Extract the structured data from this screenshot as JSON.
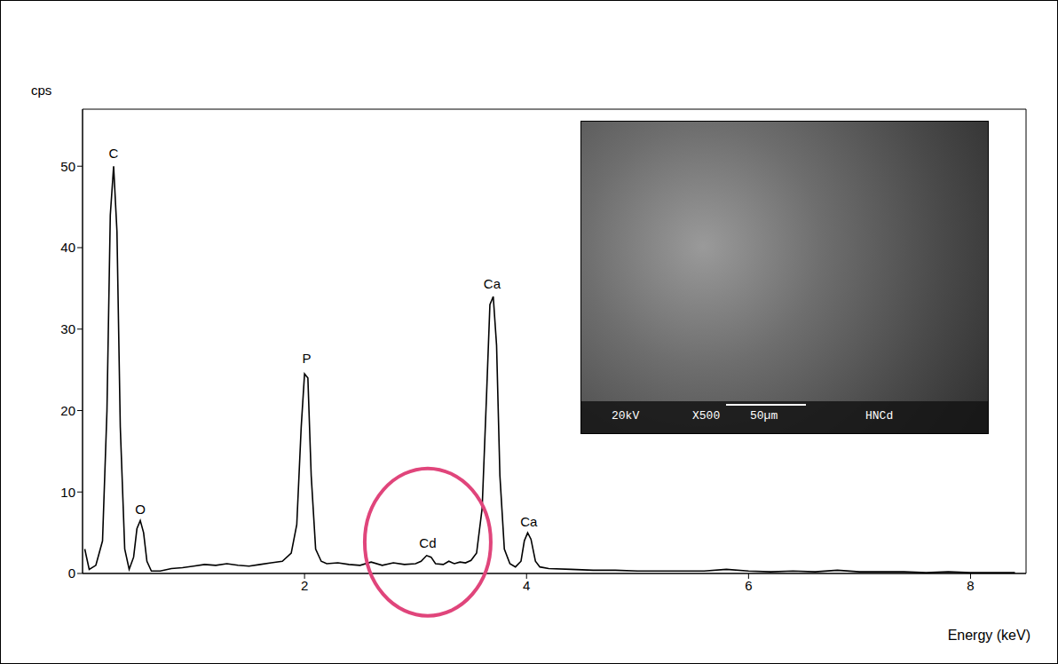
{
  "chart_data": {
    "type": "line",
    "y_label": "cps",
    "x_label": "Energy (keV)",
    "xlim": [
      0,
      8.5
    ],
    "xticks": [
      2,
      4,
      6,
      8
    ],
    "ylim": [
      0,
      57
    ],
    "yticks": [
      0,
      10,
      20,
      30,
      40,
      50
    ],
    "grid": false,
    "color": "#000000",
    "x": [
      0.02,
      0.06,
      0.12,
      0.18,
      0.22,
      0.25,
      0.28,
      0.31,
      0.34,
      0.38,
      0.42,
      0.46,
      0.49,
      0.52,
      0.55,
      0.58,
      0.62,
      0.7,
      0.8,
      0.9,
      1.0,
      1.1,
      1.2,
      1.3,
      1.4,
      1.5,
      1.6,
      1.7,
      1.8,
      1.88,
      1.93,
      1.97,
      2.0,
      2.03,
      2.06,
      2.1,
      2.15,
      2.2,
      2.3,
      2.4,
      2.5,
      2.6,
      2.7,
      2.8,
      2.9,
      3.0,
      3.05,
      3.1,
      3.14,
      3.18,
      3.25,
      3.3,
      3.35,
      3.4,
      3.45,
      3.5,
      3.55,
      3.6,
      3.64,
      3.67,
      3.7,
      3.73,
      3.76,
      3.8,
      3.85,
      3.9,
      3.95,
      3.98,
      4.01,
      4.04,
      4.08,
      4.12,
      4.2,
      4.4,
      4.6,
      4.8,
      5.0,
      5.2,
      5.4,
      5.6,
      5.8,
      6.0,
      6.2,
      6.4,
      6.6,
      6.8,
      7.0,
      7.2,
      7.4,
      7.6,
      7.8,
      8.0,
      8.2,
      8.4
    ],
    "values": [
      3,
      0.5,
      1,
      4,
      20,
      44,
      50,
      42,
      18,
      3,
      0.5,
      2,
      5.5,
      6.5,
      5,
      1.5,
      0.3,
      0.3,
      0.6,
      0.7,
      0.9,
      1.1,
      1.0,
      1.2,
      1.0,
      0.9,
      1.1,
      1.3,
      1.5,
      2.5,
      6,
      18,
      24.5,
      24,
      12,
      3,
      1.5,
      1.2,
      1.3,
      1.1,
      1.0,
      1.4,
      1.0,
      1.3,
      1.1,
      1.2,
      1.5,
      2.2,
      2.0,
      1.2,
      1.1,
      1.5,
      1.2,
      1.4,
      1.3,
      1.6,
      2.5,
      8,
      22,
      33,
      34,
      28,
      12,
      3,
      1.2,
      0.8,
      1.5,
      4,
      5,
      4.2,
      1.5,
      0.8,
      0.6,
      0.5,
      0.4,
      0.4,
      0.3,
      0.3,
      0.3,
      0.3,
      0.5,
      0.3,
      0.2,
      0.3,
      0.2,
      0.4,
      0.2,
      0.2,
      0.2,
      0.1,
      0.2,
      0.1,
      0.1,
      0.1
    ],
    "annotations": [
      {
        "text": "C",
        "x": 0.28,
        "y": 51
      },
      {
        "text": "O",
        "x": 0.52,
        "y": 7.3
      },
      {
        "text": "P",
        "x": 2.02,
        "y": 25.8
      },
      {
        "text": "Cd",
        "x": 3.11,
        "y": 3.2,
        "highlight": true
      },
      {
        "text": "Ca",
        "x": 3.69,
        "y": 35
      },
      {
        "text": "Ca",
        "x": 4.02,
        "y": 5.8
      }
    ],
    "inset": {
      "texts": [
        "20kV",
        "X500",
        "50µm",
        "HNCd"
      ]
    }
  }
}
